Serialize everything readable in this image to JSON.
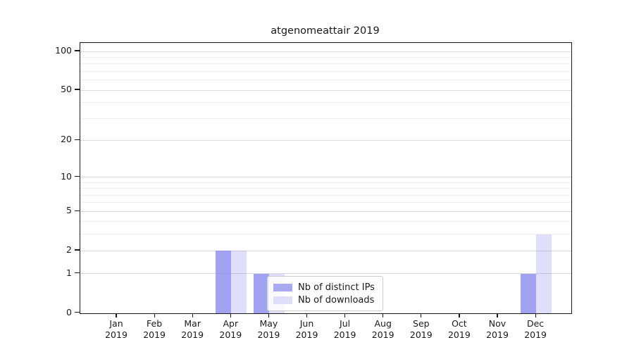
{
  "chart_data": {
    "type": "bar",
    "title": "atgenomeattair 2019",
    "categories": [
      "Jan",
      "Feb",
      "Mar",
      "Apr",
      "May",
      "Jun",
      "Jul",
      "Aug",
      "Sep",
      "Oct",
      "Nov",
      "Dec"
    ],
    "category_year": "2019",
    "series": [
      {
        "name": "Nb of distinct IPs",
        "values": [
          0,
          0,
          0,
          2,
          1,
          0,
          0,
          0,
          0,
          0,
          0,
          1
        ],
        "color": "rgba(136,136,240,0.78)",
        "legend_color": "#a9a9f3"
      },
      {
        "name": "Nb of downloads",
        "values": [
          0,
          0,
          0,
          2,
          1,
          0,
          0,
          0,
          0,
          0,
          0,
          3
        ],
        "color": "rgba(136,136,240,0.27)",
        "legend_color": "#dedefb"
      }
    ],
    "y_ticks": [
      0,
      1,
      2,
      5,
      10,
      20,
      50,
      100
    ],
    "y_minor_gridlines": [
      3,
      4,
      6,
      7,
      8,
      9,
      30,
      40,
      60,
      70,
      80,
      90
    ],
    "y_scale": "log10(value+1)",
    "ylim": [
      0,
      116
    ],
    "xlabel": "",
    "ylabel": "",
    "grid": "horizontal",
    "legend_position": "lower center inside plot"
  },
  "colors": {
    "bar_base": "#8888f0",
    "grid_major": "#d9d9d9",
    "grid_minor": "#efefef",
    "spine": "#1a1a1a",
    "text": "#1a1a1a",
    "legend_border": "#cccccc",
    "legend_bg": "rgba(255,255,255,0.8)",
    "background": "#ffffff"
  }
}
